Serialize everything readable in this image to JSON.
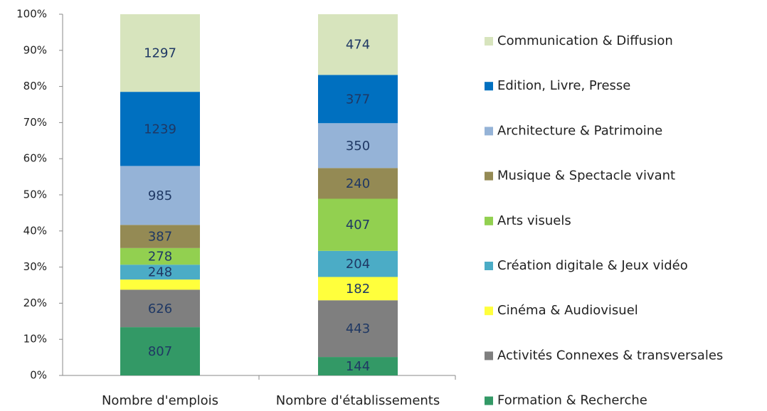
{
  "chart_data": {
    "type": "stacked_percent_bar",
    "categories": [
      "Nombre d'emplois",
      "Nombre d'établissements"
    ],
    "ylim": [
      0,
      100
    ],
    "yticks": [
      {
        "value": 0,
        "label": "0%"
      },
      {
        "value": 10,
        "label": "10%"
      },
      {
        "value": 20,
        "label": "20%"
      },
      {
        "value": 30,
        "label": "30%"
      },
      {
        "value": 40,
        "label": "40%"
      },
      {
        "value": 50,
        "label": "50%"
      },
      {
        "value": 60,
        "label": "60%"
      },
      {
        "value": 70,
        "label": "70%"
      },
      {
        "value": 80,
        "label": "80%"
      },
      {
        "value": 90,
        "label": "90%"
      },
      {
        "value": 100,
        "label": "100%"
      }
    ],
    "legend": "right",
    "series": [
      {
        "name": "Formation & Recherche",
        "color": "#339966",
        "values": [
          807,
          144
        ]
      },
      {
        "name": "Activités Connexes & transversales",
        "color": "#7f7f7f",
        "values": [
          626,
          443
        ]
      },
      {
        "name": "Cinéma & Audiovisuel",
        "color": "#ffff3c",
        "values": [
          170,
          182
        ],
        "value_labels": [
          null,
          "182"
        ]
      },
      {
        "name": "Création digitale & Jeux vidéo",
        "color": "#4bacc6",
        "values": [
          248,
          204
        ]
      },
      {
        "name": "Arts visuels",
        "color": "#92d050",
        "values": [
          278,
          407
        ]
      },
      {
        "name": "Musique & Spectacle vivant",
        "color": "#948a54",
        "values": [
          387,
          240
        ]
      },
      {
        "name": "Architecture & Patrimoine",
        "color": "#95b3d7",
        "values": [
          985,
          350
        ]
      },
      {
        "name": "Edition, Livre, Presse",
        "color": "#0070c0",
        "values": [
          1239,
          377
        ]
      },
      {
        "name": "Communication & Diffusion",
        "color": "#d7e4bd",
        "values": [
          1297,
          474
        ]
      }
    ]
  }
}
